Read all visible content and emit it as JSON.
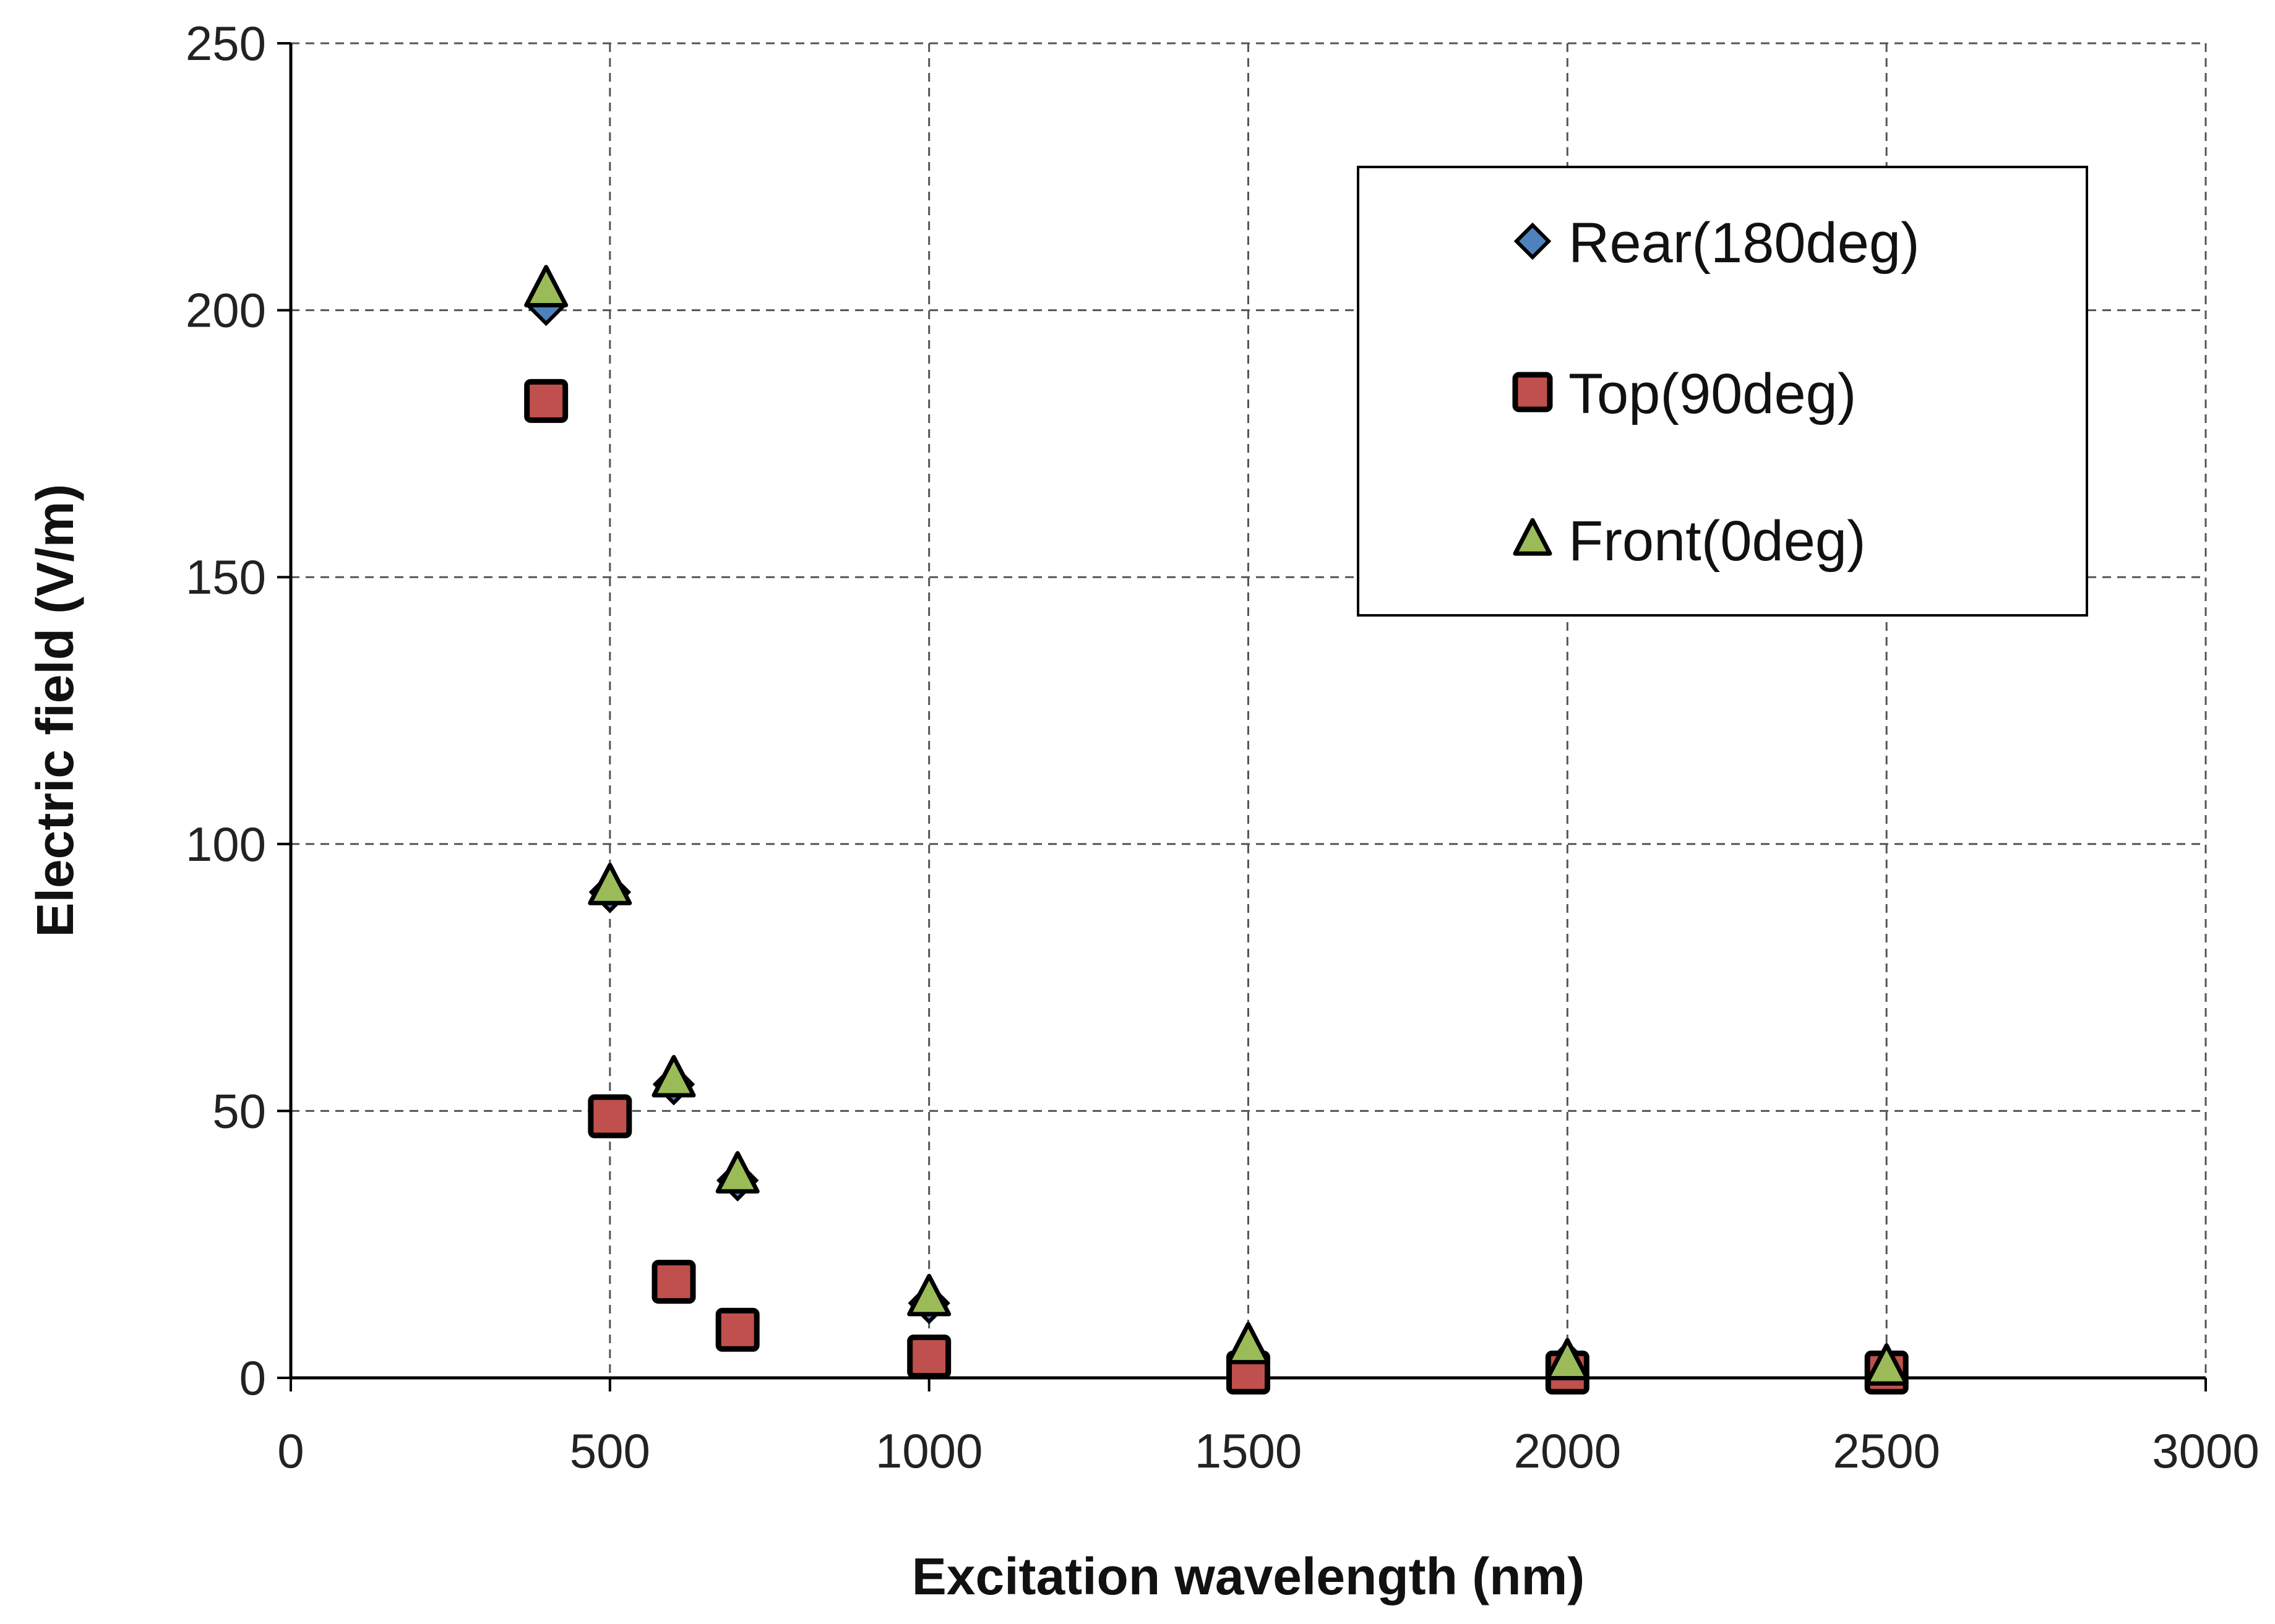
{
  "chart_data": {
    "type": "scatter",
    "title": "",
    "xlabel": "Excitation  wavelength (nm)",
    "ylabel": "Electric field (V/m)",
    "xlim": [
      0,
      3000
    ],
    "ylim": [
      0,
      250
    ],
    "xticks": [
      0,
      500,
      1000,
      1500,
      2000,
      2500,
      3000
    ],
    "yticks": [
      0,
      50,
      100,
      150,
      200,
      250
    ],
    "grid": true,
    "legend_position": "top-right",
    "series": [
      {
        "name": "Rear(180deg)",
        "marker": "diamond",
        "color": "#4f81bd",
        "x": [
          400,
          500,
          600,
          700,
          1000,
          1500,
          2000,
          2500
        ],
        "y": [
          201,
          91,
          55,
          37,
          14,
          4,
          3,
          2
        ]
      },
      {
        "name": "Top(90deg)",
        "marker": "square",
        "color": "#c0504d",
        "x": [
          400,
          500,
          600,
          700,
          1000,
          1500,
          2000,
          2500
        ],
        "y": [
          183,
          49,
          18,
          9,
          4,
          1,
          1,
          1
        ]
      },
      {
        "name": "Front(0deg)",
        "marker": "triangle",
        "color": "#9bbb59",
        "x": [
          400,
          500,
          600,
          700,
          1000,
          1500,
          2000,
          2500
        ],
        "y": [
          204,
          92,
          56,
          38,
          15,
          6,
          3,
          2
        ]
      }
    ]
  }
}
